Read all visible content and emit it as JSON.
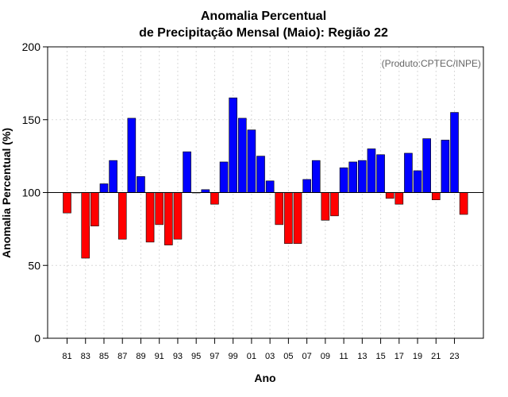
{
  "chart_data": {
    "type": "bar",
    "title_line1": "Anomalia Percentual",
    "title_line2": "de Precipitação Mensal (Maio): Região 22",
    "xlabel": "Ano",
    "ylabel": "Anomalia Percentual (%)",
    "source_note": "(Produto:CPTEC/INPE)",
    "ylim": [
      0,
      200
    ],
    "y_ticks": [
      0,
      50,
      100,
      150,
      200
    ],
    "baseline": 100,
    "grid": true,
    "colors": {
      "above": "#0000ff",
      "below": "#ff0000",
      "edge": "#000000"
    },
    "years": [
      1981,
      1982,
      1983,
      1984,
      1985,
      1986,
      1987,
      1988,
      1989,
      1990,
      1991,
      1992,
      1993,
      1994,
      1995,
      1996,
      1997,
      1998,
      1999,
      2000,
      2001,
      2002,
      2003,
      2004,
      2005,
      2006,
      2007,
      2008,
      2009,
      2010,
      2011,
      2012,
      2013,
      2014,
      2015,
      2016,
      2017,
      2018,
      2019,
      2020,
      2021,
      2022,
      2023,
      2024
    ],
    "x_tick_labels": [
      "81",
      "83",
      "85",
      "87",
      "89",
      "91",
      "93",
      "95",
      "97",
      "99",
      "01",
      "03",
      "05",
      "07",
      "09",
      "11",
      "13",
      "15",
      "17",
      "19",
      "21",
      "23"
    ],
    "values": [
      86,
      100,
      55,
      77,
      106,
      122,
      68,
      151,
      111,
      66,
      78,
      64,
      68,
      128,
      100,
      102,
      92,
      121,
      165,
      151,
      143,
      125,
      108,
      78,
      65,
      65,
      109,
      122,
      81,
      84,
      117,
      121,
      122,
      130,
      126,
      96,
      92,
      127,
      115,
      137,
      95,
      136,
      155,
      85
    ]
  }
}
